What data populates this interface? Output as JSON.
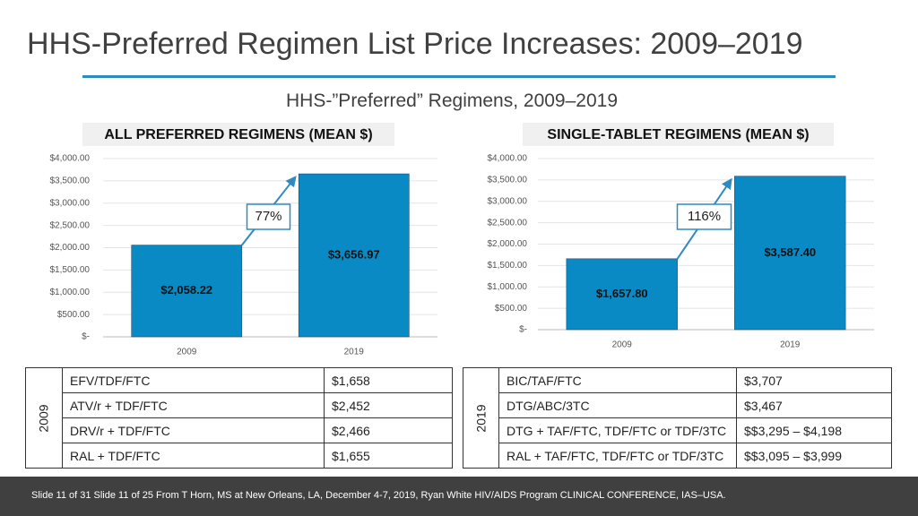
{
  "title": "HHS-Preferred Regimen List Price Increases: 2009–2019",
  "subtitle": "HHS-”Preferred” Regimens, 2009–2019",
  "chart_data": [
    {
      "type": "bar",
      "title": "ALL PREFERRED REGIMENS (MEAN $)",
      "categories": [
        "2009",
        "2019"
      ],
      "values": [
        2058.22,
        3656.97
      ],
      "value_labels": [
        "$2,058.22",
        "$3,656.97"
      ],
      "color": "#0a8ac4",
      "ylim": [
        0,
        4000
      ],
      "yticks": [
        {
          "value": 0,
          "label": "$-"
        },
        {
          "value": 500,
          "label": "$500.00"
        },
        {
          "value": 1000,
          "label": "$1,000.00"
        },
        {
          "value": 1500,
          "label": "$1,500.00"
        },
        {
          "value": 2000,
          "label": "$2,000.00"
        },
        {
          "value": 2500,
          "label": "$2,500.00"
        },
        {
          "value": 3000,
          "label": "$3,000.00"
        },
        {
          "value": 3500,
          "label": "$3,500.00"
        },
        {
          "value": 4000,
          "label": "$4,000.00"
        }
      ],
      "grid": true,
      "annotation": "77%"
    },
    {
      "type": "bar",
      "title": "SINGLE-TABLET REGIMENS (MEAN $)",
      "categories": [
        "2009",
        "2019"
      ],
      "values": [
        1657.8,
        3587.4
      ],
      "value_labels": [
        "$1,657.80",
        "$3,587.40"
      ],
      "color": "#0a8ac4",
      "ylim": [
        0,
        4000
      ],
      "yticks": [
        {
          "value": 0,
          "label": "$-"
        },
        {
          "value": 500,
          "label": "$500.00"
        },
        {
          "value": 1000,
          "label": "$1,000.00"
        },
        {
          "value": 1500,
          "label": "$1,500.00"
        },
        {
          "value": 2000,
          "label": "$2,000.00"
        },
        {
          "value": 2500,
          "label": "$2,500.00"
        },
        {
          "value": 3000,
          "label": "$3,000.00"
        },
        {
          "value": 3500,
          "label": "$3,500.00"
        },
        {
          "value": 4000,
          "label": "$4,000.00"
        }
      ],
      "grid": true,
      "annotation": "116%"
    }
  ],
  "tables": [
    {
      "year": "2009",
      "rows": [
        [
          "EFV/TDF/FTC",
          "$1,658"
        ],
        [
          "ATV/r + TDF/FTC",
          "$2,452"
        ],
        [
          "DRV/r + TDF/FTC",
          "$2,466"
        ],
        [
          "RAL + TDF/FTC",
          "$1,655"
        ]
      ]
    },
    {
      "year": "2019",
      "rows": [
        [
          "BIC/TAF/FTC",
          "$3,707"
        ],
        [
          "DTG/ABC/3TC",
          "$3,467"
        ],
        [
          "DTG + TAF/FTC, TDF/FTC or TDF/3TC",
          "$$3,295 – $4,198"
        ],
        [
          "RAL + TAF/FTC, TDF/FTC or TDF/3TC",
          "$$3,095 – $3,999"
        ]
      ]
    }
  ],
  "footer": "Slide 11 of 31 Slide 11 of 25 From T Horn, MS at New Orleans, LA, December 4-7, 2019, Ryan White HIV/AIDS Program CLINICAL CONFERENCE, IAS–USA."
}
